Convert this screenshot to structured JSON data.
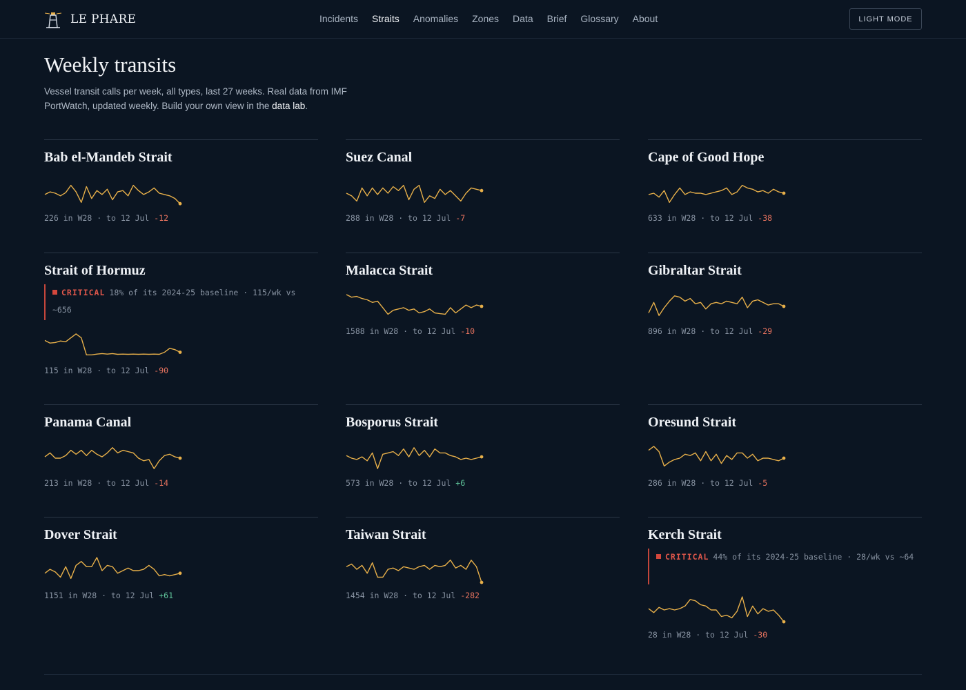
{
  "brand": {
    "name": "LE PHARE",
    "icon": "lighthouse-icon",
    "accent": "#e8b04a"
  },
  "nav": [
    {
      "label": "Incidents",
      "active": false
    },
    {
      "label": "Straits",
      "active": true
    },
    {
      "label": "Anomalies",
      "active": false
    },
    {
      "label": "Zones",
      "active": false
    },
    {
      "label": "Data",
      "active": false
    },
    {
      "label": "Brief",
      "active": false
    },
    {
      "label": "Glossary",
      "active": false
    },
    {
      "label": "About",
      "active": false
    }
  ],
  "mode_toggle": "Light mode",
  "page": {
    "title": "Weekly transits",
    "intro": "Vessel transit calls per week, all types, last 27 weeks. Real data from IMF PortWatch, updated weekly. Build your own view in the ",
    "intro_link": "data lab",
    "intro_end": "."
  },
  "colors": {
    "spark": "#e8b04a",
    "negative": "#e8735f",
    "positive": "#5fc49a",
    "critical": "#d4473c"
  },
  "cards": [
    {
      "name": "Bab el-Mandeb Strait",
      "latest": "226",
      "week": "W28",
      "date": "12 Jul",
      "delta": "-12",
      "series": [
        0.55,
        0.45,
        0.5,
        0.6,
        0.48,
        0.2,
        0.45,
        0.85,
        0.25,
        0.7,
        0.4,
        0.55,
        0.35,
        0.75,
        0.45,
        0.4,
        0.6,
        0.2,
        0.4,
        0.55,
        0.45,
        0.3,
        0.5,
        0.55,
        0.6,
        0.7,
        0.9
      ]
    },
    {
      "name": "Suez Canal",
      "latest": "288",
      "week": "W28",
      "date": "12 Jul",
      "delta": "-7",
      "series": [
        0.5,
        0.6,
        0.8,
        0.3,
        0.6,
        0.3,
        0.55,
        0.3,
        0.5,
        0.25,
        0.4,
        0.2,
        0.75,
        0.35,
        0.2,
        0.85,
        0.6,
        0.7,
        0.35,
        0.55,
        0.4,
        0.6,
        0.8,
        0.5,
        0.3,
        0.35,
        0.4
      ]
    },
    {
      "name": "Cape of Good Hope",
      "latest": "633",
      "week": "W28",
      "date": "12 Jul",
      "delta": "-38",
      "series": [
        0.55,
        0.5,
        0.65,
        0.4,
        0.85,
        0.55,
        0.3,
        0.55,
        0.45,
        0.5,
        0.5,
        0.55,
        0.5,
        0.45,
        0.4,
        0.3,
        0.55,
        0.45,
        0.2,
        0.3,
        0.35,
        0.45,
        0.4,
        0.5,
        0.35,
        0.45,
        0.5
      ]
    },
    {
      "name": "Strait of Hormuz",
      "latest": "115",
      "week": "W28",
      "date": "12 Jul",
      "delta": "-90",
      "alert": {
        "level": "CRITICAL",
        "text": "18% of its 2024-25 baseline · 115/wk vs ~656"
      },
      "series": [
        0.3,
        0.4,
        0.38,
        0.32,
        0.35,
        0.2,
        0.05,
        0.2,
        0.85,
        0.85,
        0.82,
        0.8,
        0.82,
        0.8,
        0.83,
        0.82,
        0.83,
        0.82,
        0.83,
        0.82,
        0.83,
        0.82,
        0.83,
        0.75,
        0.6,
        0.65,
        0.75
      ]
    },
    {
      "name": "Malacca Strait",
      "latest": "1588",
      "week": "W28",
      "date": "12 Jul",
      "delta": "-10",
      "series": [
        0.05,
        0.15,
        0.12,
        0.2,
        0.25,
        0.35,
        0.3,
        0.55,
        0.8,
        0.65,
        0.6,
        0.55,
        0.65,
        0.6,
        0.75,
        0.7,
        0.6,
        0.75,
        0.78,
        0.8,
        0.55,
        0.75,
        0.6,
        0.45,
        0.55,
        0.45,
        0.5
      ]
    },
    {
      "name": "Gibraltar Strait",
      "latest": "896",
      "week": "W28",
      "date": "12 Jul",
      "delta": "-29",
      "series": [
        0.75,
        0.35,
        0.85,
        0.55,
        0.3,
        0.1,
        0.15,
        0.3,
        0.2,
        0.4,
        0.35,
        0.6,
        0.4,
        0.35,
        0.4,
        0.3,
        0.35,
        0.4,
        0.15,
        0.55,
        0.3,
        0.25,
        0.35,
        0.45,
        0.4,
        0.4,
        0.5
      ]
    },
    {
      "name": "Panama Canal",
      "latest": "213",
      "week": "W28",
      "date": "12 Jul",
      "delta": "-14",
      "series": [
        0.45,
        0.3,
        0.5,
        0.5,
        0.4,
        0.2,
        0.35,
        0.2,
        0.4,
        0.2,
        0.35,
        0.45,
        0.3,
        0.1,
        0.3,
        0.2,
        0.25,
        0.3,
        0.5,
        0.6,
        0.55,
        0.9,
        0.6,
        0.4,
        0.35,
        0.45,
        0.5
      ]
    },
    {
      "name": "Bosporus Strait",
      "latest": "573",
      "week": "W28",
      "date": "12 Jul",
      "delta": "+6",
      "series": [
        0.4,
        0.5,
        0.55,
        0.45,
        0.6,
        0.3,
        0.9,
        0.35,
        0.3,
        0.25,
        0.4,
        0.15,
        0.45,
        0.1,
        0.4,
        0.2,
        0.45,
        0.15,
        0.3,
        0.3,
        0.4,
        0.45,
        0.55,
        0.5,
        0.55,
        0.5,
        0.45
      ]
    },
    {
      "name": "Oresund Strait",
      "latest": "286",
      "week": "W28",
      "date": "12 Jul",
      "delta": "-5",
      "series": [
        0.2,
        0.05,
        0.25,
        0.8,
        0.65,
        0.55,
        0.5,
        0.35,
        0.4,
        0.3,
        0.6,
        0.25,
        0.6,
        0.35,
        0.7,
        0.4,
        0.55,
        0.3,
        0.3,
        0.5,
        0.35,
        0.6,
        0.5,
        0.5,
        0.55,
        0.6,
        0.5
      ]
    },
    {
      "name": "Dover Strait",
      "latest": "1151",
      "week": "W28",
      "date": "12 Jul",
      "delta": "+61",
      "series": [
        0.6,
        0.45,
        0.55,
        0.75,
        0.35,
        0.8,
        0.3,
        0.15,
        0.35,
        0.35,
        0.0,
        0.5,
        0.3,
        0.35,
        0.6,
        0.5,
        0.4,
        0.5,
        0.5,
        0.45,
        0.3,
        0.45,
        0.7,
        0.65,
        0.7,
        0.65,
        0.6
      ]
    },
    {
      "name": "Taiwan Strait",
      "latest": "1454",
      "week": "W28",
      "date": "12 Jul",
      "delta": "-282",
      "series": [
        0.35,
        0.25,
        0.45,
        0.3,
        0.6,
        0.2,
        0.75,
        0.75,
        0.45,
        0.4,
        0.5,
        0.35,
        0.4,
        0.45,
        0.35,
        0.3,
        0.45,
        0.3,
        0.35,
        0.3,
        0.1,
        0.4,
        0.3,
        0.45,
        0.1,
        0.35,
        0.95
      ]
    },
    {
      "name": "Kerch Strait",
      "latest": "28",
      "week": "W28",
      "date": "12 Jul",
      "delta": "-30",
      "alert": {
        "level": "CRITICAL",
        "text": "44% of its 2024-25 baseline · 28/wk vs ~64"
      },
      "series": [
        0.45,
        0.6,
        0.4,
        0.5,
        0.45,
        0.5,
        0.45,
        0.35,
        0.1,
        0.15,
        0.3,
        0.35,
        0.5,
        0.5,
        0.75,
        0.7,
        0.8,
        0.55,
        0.0,
        0.75,
        0.35,
        0.65,
        0.45,
        0.55,
        0.5,
        0.7,
        0.95
      ]
    }
  ]
}
